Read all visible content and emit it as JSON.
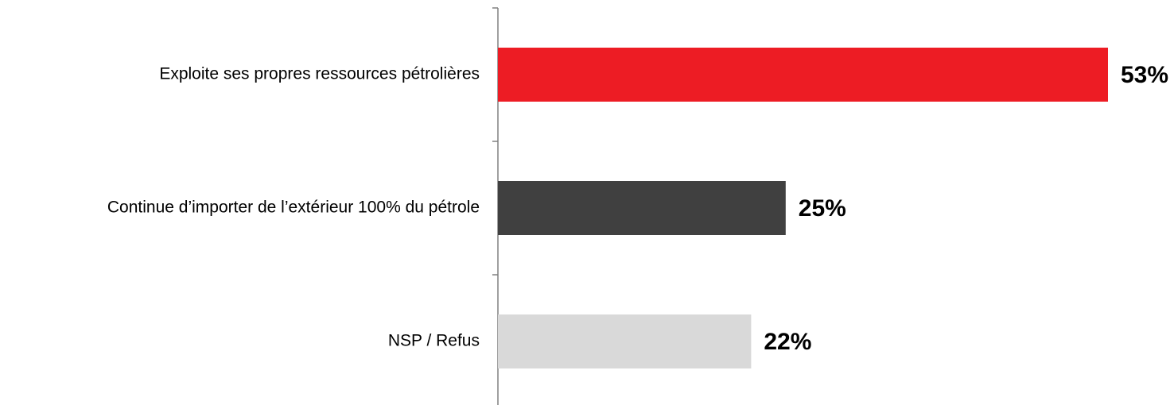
{
  "chart_data": {
    "type": "barh",
    "categories": [
      "Exploite ses propres ressources pétrolières",
      "Continue d’importer de l’extérieur 100% du pétrole",
      "NSP / Refus"
    ],
    "values": [
      53,
      25,
      22
    ],
    "value_labels": [
      "53%",
      "25%",
      "22%"
    ],
    "colors": [
      "#ed1c24",
      "#404040",
      "#d9d9d9"
    ]
  }
}
